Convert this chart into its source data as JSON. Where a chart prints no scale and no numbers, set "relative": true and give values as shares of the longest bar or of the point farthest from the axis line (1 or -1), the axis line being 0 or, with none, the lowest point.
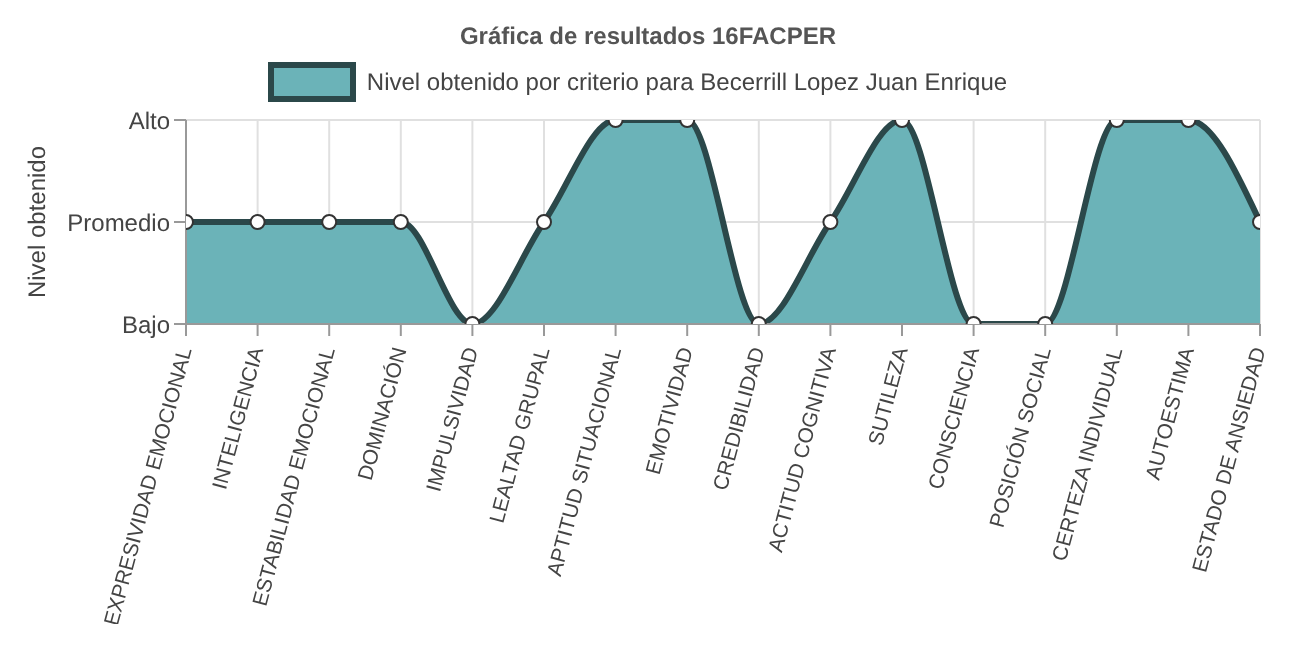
{
  "chart_data": {
    "type": "area",
    "title": "Gráfica de resultados 16FACPER",
    "ylabel": "Nivel obtenido",
    "categories": [
      "EXPRESIVIDAD EMOCIONAL",
      "INTELIGENCIA",
      "ESTABILIDAD EMOCIONAL",
      "DOMINACIÓN",
      "IMPULSIVIDAD",
      "LEALTAD GRUPAL",
      "APTITUD SITUACIONAL",
      "EMOTIVIDAD",
      "CREDIBILIDAD",
      "ACTITUD COGNITIVA",
      "SUTILEZA",
      "CONSCIENCIA",
      "POSICIÓN SOCIAL",
      "CERTEZA INDIVIDUAL",
      "AUTOESTIMA",
      "ESTADO DE ANSIEDAD"
    ],
    "y_categories": [
      "Alto",
      "Promedio",
      "Bajo"
    ],
    "relative": true,
    "series": [
      {
        "name": "Nivel obtenido por criterio para Becerrill Lopez Juan Enrique",
        "color": "#6bb3b8",
        "values": [
          0.5,
          0.5,
          0.5,
          0.5,
          0,
          0.5,
          1,
          1,
          0,
          0.5,
          1,
          0,
          0,
          1,
          1,
          0.5
        ]
      }
    ],
    "grid": true,
    "legend": "top",
    "marker": "circle",
    "line_style": "solid"
  }
}
